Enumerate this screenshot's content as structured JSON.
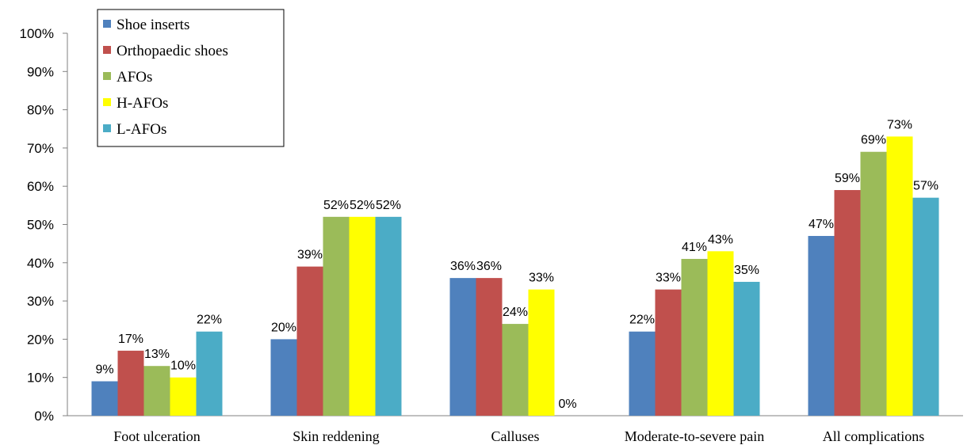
{
  "chart_data": {
    "type": "bar",
    "categories": [
      "Foot ulceration",
      "Skin reddening",
      "Calluses",
      "Moderate-to-severe pain",
      "All complications"
    ],
    "series": [
      {
        "name": "Shoe inserts",
        "color": "#4F81BD",
        "values": [
          9,
          20,
          36,
          22,
          47
        ],
        "labels": [
          "9%",
          "20%",
          "36%",
          "22%",
          "47%"
        ]
      },
      {
        "name": "Orthopaedic shoes",
        "color": "#C0504D",
        "values": [
          17,
          39,
          36,
          33,
          59
        ],
        "labels": [
          "17%",
          "39%",
          "36%",
          "33%",
          "59%"
        ]
      },
      {
        "name": "AFOs",
        "color": "#9BBB59",
        "values": [
          13,
          52,
          24,
          41,
          69
        ],
        "labels": [
          "13%",
          "52%",
          "24%",
          "41%",
          "69%"
        ]
      },
      {
        "name": "H-AFOs",
        "color": "#FFFF00",
        "values": [
          10,
          52,
          33,
          43,
          73
        ],
        "labels": [
          "10%",
          "52%",
          "33%",
          "43%",
          "73%"
        ]
      },
      {
        "name": "L-AFOs",
        "color": "#4BACC6",
        "values": [
          22,
          52,
          0,
          35,
          57
        ],
        "labels": [
          "22%",
          "52%",
          "0%",
          "35%",
          "57%"
        ]
      }
    ],
    "yticks": [
      "0%",
      "10%",
      "20%",
      "30%",
      "40%",
      "50%",
      "60%",
      "70%",
      "80%",
      "90%",
      "100%"
    ],
    "ylim": [
      0,
      100
    ],
    "grid": false,
    "legend_position": "top-left",
    "title": "",
    "xlabel": "",
    "ylabel": ""
  }
}
